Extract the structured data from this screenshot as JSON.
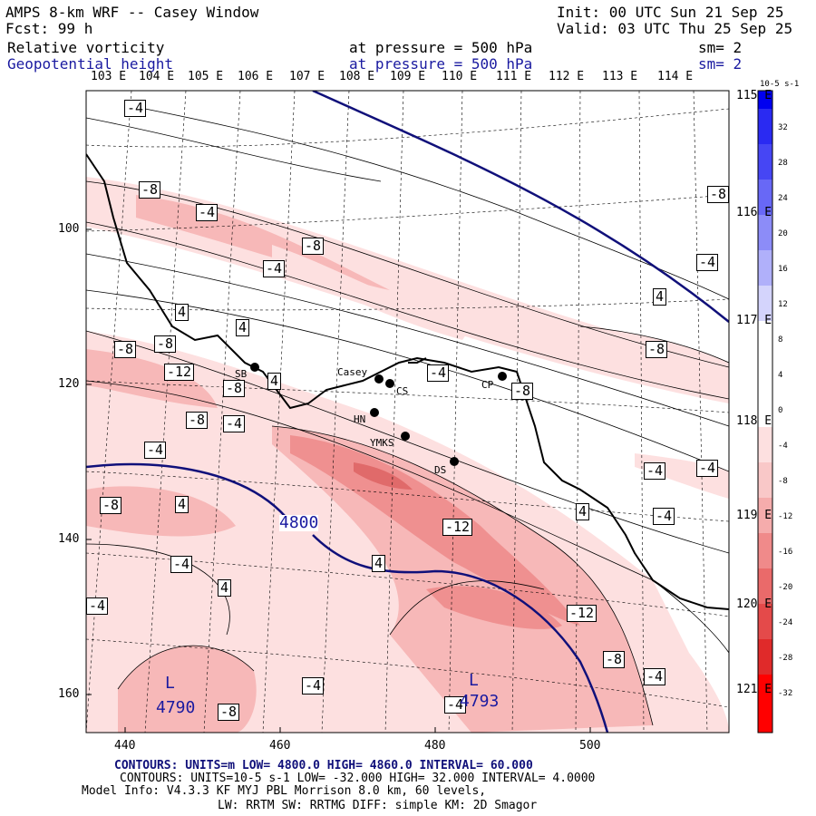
{
  "header": {
    "title": "AMPS 8-km WRF -- Casey Window",
    "init": "Init: 00 UTC Sun 21 Sep 25",
    "fcst": "Fcst:   99 h",
    "valid": "Valid: 03 UTC Thu 25 Sep 25",
    "field1": "Relative vorticity",
    "field1_level": "at pressure =  500 hPa",
    "field1_sm": "sm= 2",
    "field2": "Geopotential height",
    "field2_level": "at pressure =  500 hPa",
    "field2_sm": "sm= 2"
  },
  "colors": {
    "height_contour": "#10107a",
    "vort_neg_light": "#fde0e0",
    "vort_neg_mid": "#f7b8b8",
    "vort_neg_dark": "#ef9090",
    "vort_neg_core": "#e06a6a"
  },
  "map": {
    "lon_labels_top": [
      "103 E",
      "104 E",
      "105 E",
      "106 E",
      "107 E",
      "108 E",
      "109 E",
      "110 E",
      "111 E",
      "112 E",
      "113 E",
      "114 E"
    ],
    "lon_labels_right": [
      "115 E",
      "116 E",
      "117 E",
      "118 E",
      "119 E",
      "120 E",
      "121 E"
    ],
    "y_ticks": [
      "100",
      "120",
      "140",
      "160"
    ],
    "x_ticks": [
      "440",
      "460",
      "480",
      "500"
    ],
    "height_label": "4800",
    "lows": [
      {
        "letter": "L",
        "value": "4790"
      },
      {
        "letter": "L",
        "value": "4793"
      }
    ],
    "stations": [
      "Casey",
      "CS",
      "SB",
      "HN",
      "YMKS",
      "DS",
      "CP"
    ],
    "vort_labels": [
      "-4",
      "-8",
      "-4",
      "-8",
      "-4",
      "-8",
      "4",
      "4",
      "4",
      "-4",
      "-8",
      "-12",
      "-8",
      "4",
      "-4",
      "-8",
      "-8",
      "-8",
      "-8",
      "-4",
      "-4",
      "-12",
      "-12",
      "-8",
      "-4",
      "4",
      "-4",
      "-4",
      "4",
      "-4",
      "-4",
      "-4",
      "-4",
      "-8",
      "4",
      "-8",
      "-4",
      "4"
    ]
  },
  "colorbar": {
    "unit": "10-5 s-1",
    "ticks": [
      "32",
      "28",
      "24",
      "20",
      "16",
      "12",
      "8",
      "4",
      "0",
      "-4",
      "-8",
      "-12",
      "-16",
      "-20",
      "-24",
      "-28",
      "-32"
    ]
  },
  "footer": {
    "contours1": "CONTOURS:  UNITS=m  LOW=  4800.0        HIGH=  4860.0       INTERVAL=   60.000",
    "contours2": "CONTOURS:  UNITS=10-5 s-1   LOW= -32.000      HIGH=  32.000      INTERVAL=   4.0000",
    "model1": "Model Info: V4.3.3   KF       MYJ PBL  Morrison          8.0 km,  60 levels,",
    "model2": "LW: RRTM SW: RRTMG   DIFF: simple KM: 2D Smagor"
  }
}
